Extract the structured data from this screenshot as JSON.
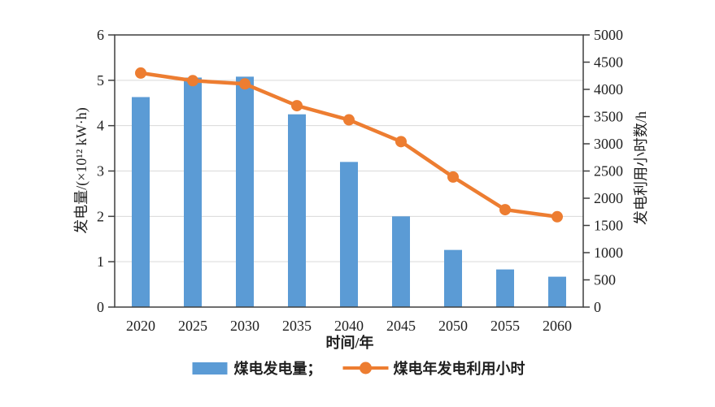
{
  "chart_data": {
    "type": "bar",
    "categories": [
      "2020",
      "2025",
      "2030",
      "2035",
      "2040",
      "2045",
      "2050",
      "2055",
      "2060"
    ],
    "series": [
      {
        "name": "煤电发电量",
        "type": "bar",
        "axis": "left",
        "color": "#5B9BD5",
        "values": [
          4.63,
          5.06,
          5.08,
          4.25,
          3.2,
          2.0,
          1.26,
          0.83,
          0.67
        ]
      },
      {
        "name": "煤电年发电利用小时",
        "type": "line",
        "axis": "right",
        "color": "#ED7D31",
        "values": [
          4300,
          4160,
          4100,
          3700,
          3440,
          3040,
          2390,
          1790,
          1660
        ]
      }
    ],
    "title": "",
    "xlabel": "时间/年",
    "ylabel_left": "发电量/(×10¹² kW·h)",
    "ylabel_right": "发电利用小时数/h",
    "ylim_left": [
      0,
      6
    ],
    "ytick_step_left": 1,
    "ylim_right": [
      0,
      5000
    ],
    "ytick_step_right": 500,
    "grid": true,
    "legend_position": "bottom"
  },
  "legend": {
    "bar_label": "煤电发电量；",
    "line_label": "煤电年发电利用小时"
  },
  "colors": {
    "bar": "#5B9BD5",
    "line": "#ED7D31",
    "grid": "#D9D9D9",
    "axis": "#3F3F3F",
    "text": "#1F1F1F",
    "background": "#FFFFFF"
  }
}
